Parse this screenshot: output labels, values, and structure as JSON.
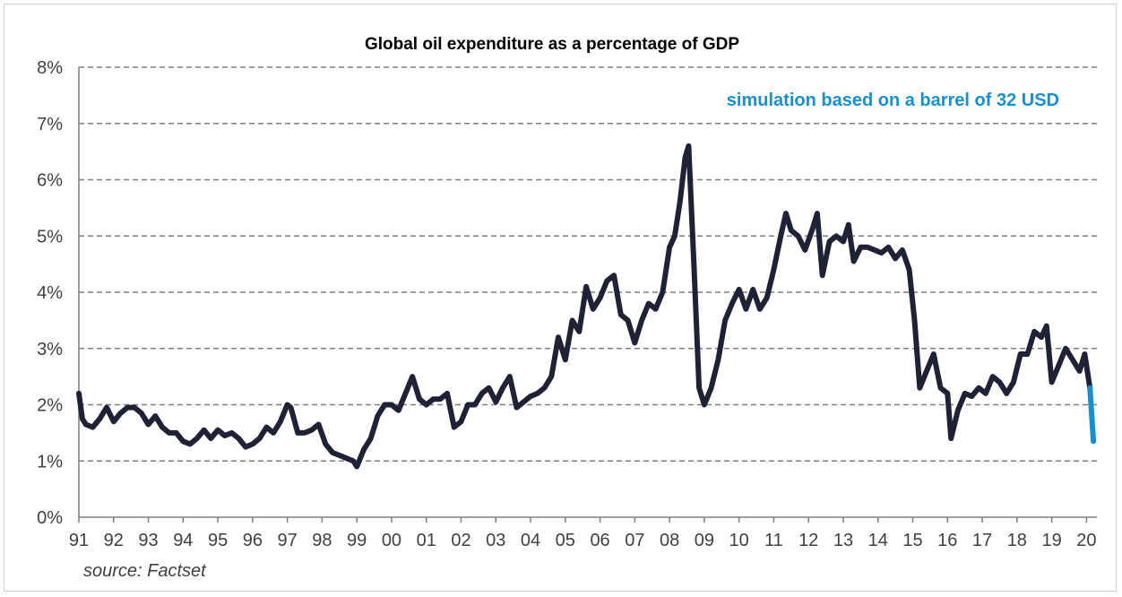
{
  "chart_data": {
    "type": "line",
    "title": "Global oil expenditure as a percentage of GDP",
    "xlabel": "",
    "ylabel": "",
    "ylim": [
      0,
      8
    ],
    "xlim": [
      1991,
      2020.3
    ],
    "yticks": [
      0,
      1,
      2,
      3,
      4,
      5,
      6,
      7,
      8
    ],
    "ytick_labels": [
      "0%",
      "1%",
      "2%",
      "3%",
      "4%",
      "5%",
      "6%",
      "7%",
      "8%"
    ],
    "xticks": [
      1991,
      1992,
      1993,
      1994,
      1995,
      1996,
      1997,
      1998,
      1999,
      2000,
      2001,
      2002,
      2003,
      2004,
      2005,
      2006,
      2007,
      2008,
      2009,
      2010,
      2011,
      2012,
      2013,
      2014,
      2015,
      2016,
      2017,
      2018,
      2019,
      2020
    ],
    "xtick_labels": [
      "91",
      "92",
      "93",
      "94",
      "95",
      "96",
      "97",
      "98",
      "99",
      "00",
      "01",
      "02",
      "03",
      "04",
      "05",
      "06",
      "07",
      "08",
      "09",
      "10",
      "11",
      "12",
      "13",
      "14",
      "15",
      "16",
      "17",
      "18",
      "19",
      "20"
    ],
    "grid": true,
    "annotation": "simulation based on a barrel of 32 USD",
    "source": "source: Factset",
    "colors": {
      "main": "#1f2235",
      "simulation": "#1a8fce",
      "grid": "#7f7f7f",
      "axis": "#7f7f7f"
    },
    "series": [
      {
        "x": [
          1991.0,
          1991.1,
          1991.2,
          1991.4,
          1991.6,
          1991.8,
          1992.0,
          1992.2,
          1992.4,
          1992.6,
          1992.8,
          1993.0,
          1993.2,
          1993.4,
          1993.6,
          1993.8,
          1994.0,
          1994.2,
          1994.4,
          1994.6,
          1994.8,
          1995.0,
          1995.2,
          1995.4,
          1995.6,
          1995.8,
          1996.0,
          1996.2,
          1996.4,
          1996.6,
          1996.8,
          1997.0,
          1997.1,
          1997.3,
          1997.5,
          1997.7,
          1997.9,
          1998.1,
          1998.3,
          1998.5,
          1998.7,
          1998.9,
          1999.0,
          1999.2,
          1999.4,
          1999.6,
          1999.8,
          2000.0,
          2000.2,
          2000.4,
          2000.6,
          2000.8,
          2001.0,
          2001.2,
          2001.4,
          2001.6,
          2001.8,
          2002.0,
          2002.2,
          2002.4,
          2002.6,
          2002.8,
          2003.0,
          2003.2,
          2003.4,
          2003.6,
          2003.8,
          2004.0,
          2004.2,
          2004.4,
          2004.6,
          2004.8,
          2005.0,
          2005.2,
          2005.4,
          2005.6,
          2005.8,
          2006.0,
          2006.2,
          2006.4,
          2006.6,
          2006.8,
          2007.0,
          2007.2,
          2007.4,
          2007.6,
          2007.8,
          2008.0,
          2008.15,
          2008.3,
          2008.45,
          2008.55,
          2008.7,
          2008.85,
          2009.0,
          2009.2,
          2009.4,
          2009.6,
          2009.8,
          2010.0,
          2010.2,
          2010.4,
          2010.6,
          2010.8,
          2011.0,
          2011.2,
          2011.35,
          2011.5,
          2011.7,
          2011.9,
          2012.1,
          2012.25,
          2012.4,
          2012.6,
          2012.8,
          2013.0,
          2013.15,
          2013.3,
          2013.5,
          2013.7,
          2013.9,
          2014.1,
          2014.3,
          2014.5,
          2014.7,
          2014.9,
          2015.05,
          2015.2,
          2015.4,
          2015.6,
          2015.8,
          2016.0,
          2016.1,
          2016.3,
          2016.5,
          2016.7,
          2016.9,
          2017.1,
          2017.3,
          2017.5,
          2017.7,
          2017.9,
          2018.1,
          2018.3,
          2018.5,
          2018.7,
          2018.85,
          2019.0,
          2019.2,
          2019.4,
          2019.6,
          2019.8,
          2019.95,
          2020.1
        ],
        "values": [
          2.2,
          1.75,
          1.65,
          1.6,
          1.75,
          1.95,
          1.7,
          1.85,
          1.95,
          1.95,
          1.85,
          1.65,
          1.8,
          1.6,
          1.5,
          1.5,
          1.35,
          1.3,
          1.4,
          1.55,
          1.4,
          1.55,
          1.45,
          1.5,
          1.4,
          1.25,
          1.3,
          1.4,
          1.6,
          1.5,
          1.7,
          2.0,
          1.95,
          1.5,
          1.5,
          1.55,
          1.65,
          1.3,
          1.15,
          1.1,
          1.05,
          1.0,
          0.9,
          1.2,
          1.4,
          1.8,
          2.0,
          2.0,
          1.9,
          2.2,
          2.5,
          2.1,
          2.0,
          2.1,
          2.1,
          2.2,
          1.6,
          1.7,
          2.0,
          2.0,
          2.2,
          2.3,
          2.05,
          2.3,
          2.5,
          1.95,
          2.05,
          2.15,
          2.2,
          2.3,
          2.5,
          3.2,
          2.8,
          3.5,
          3.3,
          4.1,
          3.7,
          3.9,
          4.2,
          4.3,
          3.6,
          3.5,
          3.1,
          3.5,
          3.8,
          3.7,
          4.0,
          4.8,
          5.0,
          5.6,
          6.4,
          6.6,
          4.5,
          2.3,
          2.0,
          2.3,
          2.8,
          3.5,
          3.8,
          4.05,
          3.7,
          4.05,
          3.7,
          3.9,
          4.4,
          5.0,
          5.4,
          5.1,
          5.0,
          4.75,
          5.1,
          5.4,
          4.3,
          4.9,
          5.0,
          4.9,
          5.2,
          4.55,
          4.8,
          4.8,
          4.75,
          4.7,
          4.8,
          4.6,
          4.75,
          4.4,
          3.5,
          2.3,
          2.6,
          2.9,
          2.3,
          2.2,
          1.4,
          1.9,
          2.2,
          2.15,
          2.3,
          2.2,
          2.5,
          2.4,
          2.2,
          2.4,
          2.9,
          2.9,
          3.3,
          3.2,
          3.4,
          2.4,
          2.7,
          3.0,
          2.8,
          2.6,
          2.9,
          2.3
        ]
      },
      {
        "name": "simulation",
        "x": [
          2020.1,
          2020.2
        ],
        "values": [
          2.3,
          1.35
        ]
      }
    ]
  }
}
